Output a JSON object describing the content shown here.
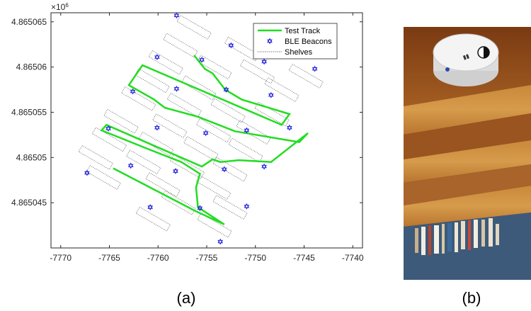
{
  "chart_data": {
    "type": "line",
    "title": "",
    "xlabel": "",
    "ylabel": "",
    "xlim": [
      -7771,
      -7739
    ],
    "ylim": [
      4.86504,
      4.865066
    ],
    "x_ticks": [
      "-7770",
      "-7765",
      "-7760",
      "-7755",
      "-7750",
      "-7745",
      "-7740"
    ],
    "y_ticks": [
      "4.865045",
      "4.86505",
      "4.865055",
      "4.86506",
      "4.865065"
    ],
    "y_exponent_label": "×10",
    "y_exponent_power": "6",
    "legend_position": "top-right",
    "grid": false,
    "series": [
      {
        "name": "Test Track",
        "kind": "line",
        "color": "#22dd22",
        "points": [
          [
            -7756.3,
            4.8650613
          ],
          [
            -7755.2,
            4.8650598
          ],
          [
            -7754.4,
            4.8650593
          ],
          [
            -7753.1,
            4.8650575
          ],
          [
            -7751.4,
            4.8650564
          ],
          [
            -7746.5,
            4.8650548
          ],
          [
            -7747.3,
            4.8650536
          ],
          [
            -7761.6,
            4.8650602
          ],
          [
            -7763.0,
            4.865058
          ],
          [
            -7760.4,
            4.8650564
          ],
          [
            -7759.3,
            4.8650555
          ],
          [
            -7755.9,
            4.8650545
          ],
          [
            -7752.1,
            4.8650529
          ],
          [
            -7745.5,
            4.8650517
          ],
          [
            -7744.6,
            4.8650527
          ],
          [
            -7748.4,
            4.8650495
          ],
          [
            -7751.7,
            4.8650497
          ],
          [
            -7753.6,
            4.8650495
          ],
          [
            -7754.4,
            4.8650498
          ],
          [
            -7755.5,
            4.865049
          ],
          [
            -7765.3,
            4.8650536
          ],
          [
            -7765.8,
            4.865053
          ],
          [
            -7760.7,
            4.8650508
          ],
          [
            -7757.6,
            4.8650495
          ],
          [
            -7755.7,
            4.8650482
          ],
          [
            -7756.1,
            4.8650467
          ],
          [
            -7755.9,
            4.8650445
          ],
          [
            -7753.2,
            4.8650426
          ],
          [
            -7756.2,
            4.8650441
          ],
          [
            -7764.6,
            4.8650488
          ]
        ]
      },
      {
        "name": "BLE Beacons",
        "kind": "scatter",
        "color": "#2222dd",
        "points": [
          [
            -7758.1,
            4.8650657
          ],
          [
            -7752.5,
            4.8650624
          ],
          [
            -7760.1,
            4.8650611
          ],
          [
            -7755.5,
            4.8650608
          ],
          [
            -7749.1,
            4.8650606
          ],
          [
            -7743.9,
            4.8650598
          ],
          [
            -7762.6,
            4.8650573
          ],
          [
            -7758.1,
            4.8650576
          ],
          [
            -7753.0,
            4.8650575
          ],
          [
            -7748.4,
            4.8650569
          ],
          [
            -7765.1,
            4.8650532
          ],
          [
            -7760.1,
            4.8650533
          ],
          [
            -7755.1,
            4.8650527
          ],
          [
            -7750.9,
            4.865053
          ],
          [
            -7746.5,
            4.8650533
          ],
          [
            -7762.8,
            4.8650491
          ],
          [
            -7758.2,
            4.8650485
          ],
          [
            -7753.2,
            4.8650487
          ],
          [
            -7749.1,
            4.865049
          ],
          [
            -7767.3,
            4.8650483
          ],
          [
            -7760.8,
            4.8650445
          ],
          [
            -7755.7,
            4.8650444
          ],
          [
            -7750.9,
            4.8650446
          ],
          [
            -7753.6,
            4.8650407
          ]
        ]
      },
      {
        "name": "Shelves",
        "kind": "rectangles",
        "color": "#555555"
      }
    ],
    "shelves": [
      {
        "center": [
          -7756.3,
          4.8650644
        ]
      },
      {
        "center": [
          -7751.4,
          4.865062
        ]
      },
      {
        "center": [
          -7757.7,
          4.8650624
        ]
      },
      {
        "center": [
          -7749.8,
          4.8650595
        ]
      },
      {
        "center": [
          -7744.8,
          4.865059
        ]
      },
      {
        "center": [
          -7759.2,
          4.8650605
        ]
      },
      {
        "center": [
          -7754.2,
          4.86506
        ]
      },
      {
        "center": [
          -7760.6,
          4.8650585
        ]
      },
      {
        "center": [
          -7755.8,
          4.8650577
        ]
      },
      {
        "center": [
          -7747.3,
          4.8650575
        ]
      },
      {
        "center": [
          -7762.0,
          4.8650565
        ]
      },
      {
        "center": [
          -7757.3,
          4.8650558
        ]
      },
      {
        "center": [
          -7752.8,
          4.8650552
        ]
      },
      {
        "center": [
          -7748.3,
          4.8650548
        ]
      },
      {
        "center": [
          -7763.8,
          4.865054
        ]
      },
      {
        "center": [
          -7758.8,
          4.8650535
        ]
      },
      {
        "center": [
          -7754.3,
          4.865053
        ]
      },
      {
        "center": [
          -7750.2,
          4.8650528
        ]
      },
      {
        "center": [
          -7765.0,
          4.865052
        ]
      },
      {
        "center": [
          -7760.2,
          4.8650515
        ]
      },
      {
        "center": [
          -7755.6,
          4.865051
        ]
      },
      {
        "center": [
          -7751.0,
          4.8650508
        ]
      },
      {
        "center": [
          -7766.4,
          4.86505
        ]
      },
      {
        "center": [
          -7761.5,
          4.8650495
        ]
      },
      {
        "center": [
          -7757.0,
          4.865049
        ]
      },
      {
        "center": [
          -7752.6,
          4.8650487
        ]
      },
      {
        "center": [
          -7765.6,
          4.8650478
        ]
      },
      {
        "center": [
          -7759.5,
          4.865047
        ]
      },
      {
        "center": [
          -7754.3,
          4.8650467
        ]
      },
      {
        "center": [
          -7757.9,
          4.865045
        ]
      },
      {
        "center": [
          -7752.6,
          4.8650445
        ]
      },
      {
        "center": [
          -7760.5,
          4.8650432
        ]
      },
      {
        "center": [
          -7754.2,
          4.8650425
        ]
      }
    ],
    "shelf_angle_deg": 30
  },
  "captions": {
    "a": "(a)",
    "b": "(b)"
  },
  "photo": {
    "alt_icon": "ble-beacon-photo"
  }
}
